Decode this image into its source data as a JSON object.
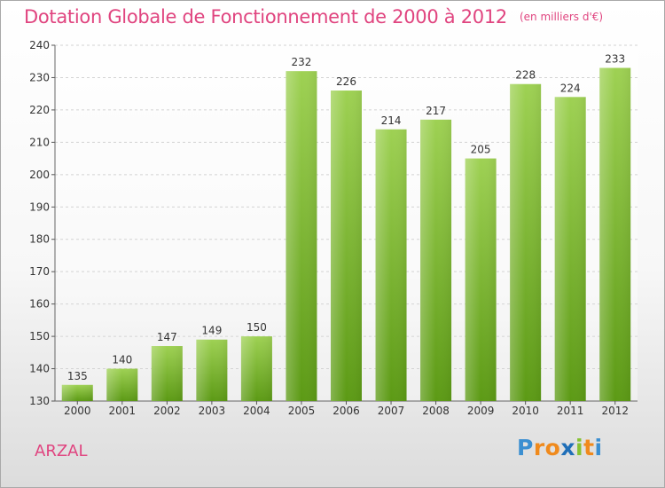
{
  "header": {
    "title": "Dotation Globale de Fonctionnement de 2000 à 2012",
    "unit": "(en milliers d'€)"
  },
  "commune": "ARZAL",
  "logo": {
    "text": "Proxiti",
    "letter_colors": [
      "#3b8fd1",
      "#f08a1c",
      "#f08a1c",
      "#1f6fb8",
      "#86c232",
      "#f08a1c",
      "#3b8fd1"
    ]
  },
  "colors": {
    "bar_top": "#9ed153",
    "bar_bottom": "#5c9a15",
    "title": "#e0447f"
  },
  "chart_data": {
    "type": "bar",
    "categories": [
      "2000",
      "2001",
      "2002",
      "2003",
      "2004",
      "2005",
      "2006",
      "2007",
      "2008",
      "2009",
      "2010",
      "2011",
      "2012"
    ],
    "values": [
      135,
      140,
      147,
      149,
      150,
      232,
      226,
      214,
      217,
      205,
      228,
      224,
      233
    ],
    "ylim": [
      130,
      240
    ],
    "yticks": [
      130,
      140,
      150,
      160,
      170,
      180,
      190,
      200,
      210,
      220,
      230,
      240
    ],
    "grid": true,
    "data_labels": true
  }
}
